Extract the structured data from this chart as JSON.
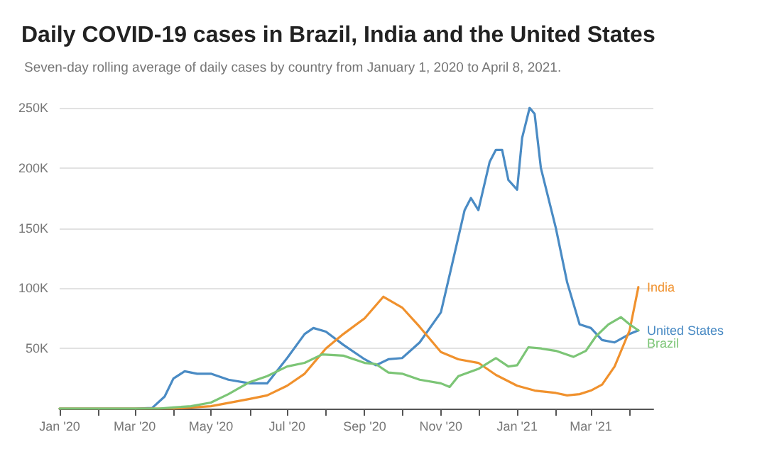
{
  "chart_data": {
    "type": "line",
    "title": "Daily COVID-19 cases in Brazil, India and the United States",
    "subtitle": "Seven-day rolling average of daily cases by country from January 1, 2020 to April 8, 2021.",
    "xlim": [
      "2020-01-01",
      "2021-04-20"
    ],
    "xticks": [
      {
        "value": "2020-01-01",
        "label": "Jan '20"
      },
      {
        "value": "2020-02-01",
        "label": null
      },
      {
        "value": "2020-03-01",
        "label": "Mar '20"
      },
      {
        "value": "2020-04-01",
        "label": null
      },
      {
        "value": "2020-05-01",
        "label": "May '20"
      },
      {
        "value": "2020-06-01",
        "label": null
      },
      {
        "value": "2020-07-01",
        "label": "Jul '20"
      },
      {
        "value": "2020-08-01",
        "label": null
      },
      {
        "value": "2020-09-01",
        "label": "Sep '20"
      },
      {
        "value": "2020-10-01",
        "label": null
      },
      {
        "value": "2020-11-01",
        "label": "Nov '20"
      },
      {
        "value": "2020-12-01",
        "label": null
      },
      {
        "value": "2021-01-01",
        "label": "Jan '21"
      },
      {
        "value": "2021-02-01",
        "label": null
      },
      {
        "value": "2021-03-01",
        "label": "Mar '21"
      },
      {
        "value": "2021-04-01",
        "label": null
      }
    ],
    "ylim": [
      0,
      250000
    ],
    "yticks": [
      {
        "value": 0,
        "label": null
      },
      {
        "value": 50000,
        "label": "50K"
      },
      {
        "value": 100000,
        "label": "100K"
      },
      {
        "value": 150000,
        "label": "150K"
      },
      {
        "value": 200000,
        "label": "200K"
      },
      {
        "value": 250000,
        "label": "250K"
      }
    ],
    "grid": "y",
    "marker": "none",
    "line_style": "solid",
    "series": [
      {
        "name": "United States",
        "color": "#4a8bc4",
        "x": [
          "2020-01-01",
          "2020-03-01",
          "2020-03-15",
          "2020-03-25",
          "2020-04-01",
          "2020-04-10",
          "2020-04-20",
          "2020-05-01",
          "2020-05-15",
          "2020-06-01",
          "2020-06-15",
          "2020-07-01",
          "2020-07-15",
          "2020-07-22",
          "2020-08-01",
          "2020-08-15",
          "2020-09-01",
          "2020-09-10",
          "2020-09-20",
          "2020-10-01",
          "2020-10-15",
          "2020-11-01",
          "2020-11-10",
          "2020-11-20",
          "2020-11-25",
          "2020-12-01",
          "2020-12-10",
          "2020-12-15",
          "2020-12-20",
          "2020-12-25",
          "2021-01-01",
          "2021-01-05",
          "2021-01-11",
          "2021-01-15",
          "2021-01-20",
          "2021-02-01",
          "2021-02-10",
          "2021-02-20",
          "2021-03-01",
          "2021-03-10",
          "2021-03-20",
          "2021-04-01",
          "2021-04-08"
        ],
        "values": [
          0,
          0,
          500,
          10000,
          25000,
          31000,
          29000,
          29000,
          24000,
          21000,
          21000,
          42000,
          62000,
          67000,
          64000,
          53000,
          41000,
          36000,
          41000,
          42000,
          55000,
          80000,
          120000,
          165000,
          175000,
          165000,
          205000,
          215000,
          215000,
          190000,
          182000,
          225000,
          250000,
          245000,
          200000,
          150000,
          105000,
          70000,
          67000,
          57000,
          55000,
          62000,
          65000
        ]
      },
      {
        "name": "India",
        "color": "#f0912d",
        "x": [
          "2020-01-01",
          "2020-04-01",
          "2020-05-01",
          "2020-06-01",
          "2020-06-15",
          "2020-07-01",
          "2020-07-15",
          "2020-08-01",
          "2020-08-15",
          "2020-09-01",
          "2020-09-16",
          "2020-10-01",
          "2020-10-15",
          "2020-11-01",
          "2020-11-15",
          "2020-12-01",
          "2020-12-15",
          "2021-01-01",
          "2021-01-15",
          "2021-02-01",
          "2021-02-10",
          "2021-02-20",
          "2021-03-01",
          "2021-03-10",
          "2021-03-20",
          "2021-04-01",
          "2021-04-08"
        ],
        "values": [
          0,
          0,
          2000,
          8000,
          11000,
          19000,
          29000,
          50000,
          62000,
          75000,
          93000,
          84000,
          68000,
          47000,
          41000,
          38000,
          28000,
          19000,
          15000,
          13000,
          11000,
          12000,
          15000,
          20000,
          35000,
          65000,
          101000
        ]
      },
      {
        "name": "Brazil",
        "color": "#7cc576",
        "x": [
          "2020-01-01",
          "2020-03-20",
          "2020-04-01",
          "2020-04-15",
          "2020-05-01",
          "2020-05-15",
          "2020-06-01",
          "2020-06-15",
          "2020-07-01",
          "2020-07-15",
          "2020-07-29",
          "2020-08-15",
          "2020-09-01",
          "2020-09-10",
          "2020-09-20",
          "2020-10-01",
          "2020-10-15",
          "2020-11-01",
          "2020-11-08",
          "2020-11-15",
          "2020-12-01",
          "2020-12-15",
          "2020-12-25",
          "2021-01-01",
          "2021-01-10",
          "2021-01-20",
          "2021-02-01",
          "2021-02-15",
          "2021-02-25",
          "2021-03-05",
          "2021-03-15",
          "2021-03-25",
          "2021-04-01",
          "2021-04-08"
        ],
        "values": [
          0,
          0,
          1000,
          2000,
          5000,
          12000,
          22000,
          27000,
          35000,
          38000,
          45000,
          44000,
          38000,
          37000,
          30000,
          29000,
          24000,
          21000,
          18000,
          27000,
          33000,
          42000,
          35000,
          36000,
          51000,
          50000,
          48000,
          43000,
          48000,
          60000,
          70000,
          76000,
          70000,
          65000
        ]
      }
    ]
  }
}
